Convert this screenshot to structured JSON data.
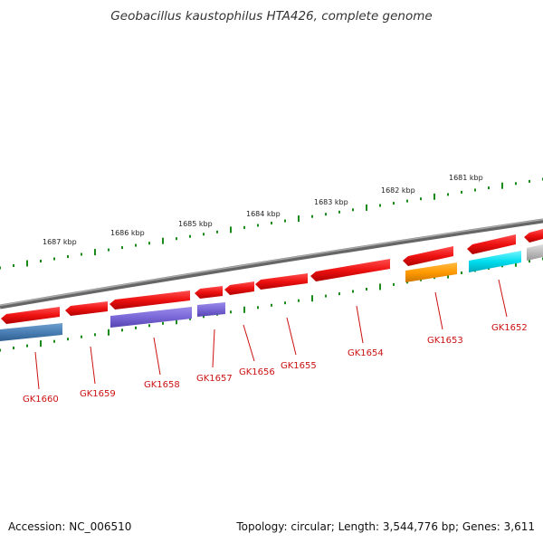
{
  "title": "Geobacillus kaustophilus HTA426, complete genome",
  "footer": {
    "accession": "Accession: NC_006510",
    "summary": "Topology: circular; Length: 3,544,776 bp; Genes: 3,611"
  },
  "ruler_labels": [
    "1687 kbp",
    "1686 kbp",
    "1685 kbp",
    "1684 kbp",
    "1683 kbp",
    "1682 kbp",
    "1681 kbp"
  ],
  "gene_labels": [
    "GK1660",
    "GK1659",
    "GK1658",
    "GK1657",
    "GK1656",
    "GK1655",
    "GK1654",
    "GK1653",
    "GK1652"
  ],
  "colors": {
    "backbone": "#888888",
    "gene_red": "#ee1111",
    "gene_purple": "#7b68d8",
    "gene_steelblue": "#4a7fb5",
    "gene_orange": "#ff9900",
    "gene_cyan": "#00ddee",
    "gene_gray": "#bbbbbb",
    "tick_green": "#1a8a1a",
    "label_red": "#cc1111"
  }
}
